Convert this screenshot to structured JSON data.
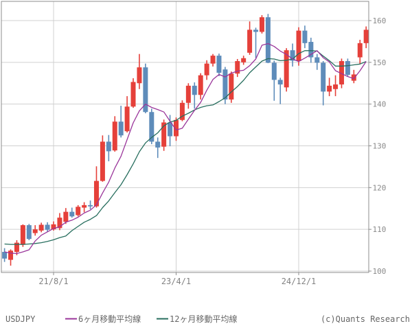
{
  "legend": {
    "series_label": "USDJPY",
    "ma6_label": "6ヶ月移動平均線",
    "ma12_label": "12ヶ月移動平均線",
    "copyright": "(c)Quants Research"
  },
  "colors": {
    "up_candle": "#e5403a",
    "down_candle": "#5e8cba",
    "ma6": "#9a359a",
    "ma12": "#276e5e",
    "grid": "#d0d0d0",
    "frame": "#8c8c8c",
    "axis_text": "#8a8a8a",
    "legend_text": "#666666",
    "background": "#ffffff"
  },
  "chart_data": {
    "type": "candlestick",
    "symbol": "USDJPY",
    "interval": "monthly",
    "ylim": [
      100,
      164.6
    ],
    "grid": true,
    "y_ticks": [
      100,
      110,
      120,
      130,
      140,
      150,
      160
    ],
    "x_ticks": [
      {
        "index": 8,
        "label": "21/8/1"
      },
      {
        "index": 28,
        "label": "23/4/1"
      },
      {
        "index": 48,
        "label": "24/12/1"
      }
    ],
    "candles_ohlc": [
      [
        104.6,
        105.5,
        102.2,
        103.0
      ],
      [
        102.7,
        105.2,
        101.3,
        104.9
      ],
      [
        104.6,
        107.4,
        103.8,
        106.8
      ],
      [
        106.3,
        111.2,
        105.8,
        111.0
      ],
      [
        111.0,
        111.3,
        107.4,
        107.7
      ],
      [
        109.1,
        111.0,
        108.5,
        110.0
      ],
      [
        109.7,
        111.6,
        109.3,
        111.1
      ],
      [
        111.1,
        111.7,
        109.4,
        109.9
      ],
      [
        110.0,
        111.9,
        109.7,
        111.2
      ],
      [
        110.3,
        113.9,
        109.8,
        112.8
      ],
      [
        111.8,
        115.1,
        111.3,
        114.2
      ],
      [
        114.2,
        115.2,
        112.8,
        113.1
      ],
      [
        113.4,
        115.8,
        113.1,
        115.4
      ],
      [
        115.2,
        116.5,
        114.1,
        115.8
      ],
      [
        115.8,
        116.9,
        114.8,
        115.5
      ],
      [
        115.5,
        125.1,
        115.2,
        121.6
      ],
      [
        121.6,
        132.5,
        121.4,
        131.0
      ],
      [
        131.0,
        132.6,
        126.3,
        128.7
      ],
      [
        128.9,
        137.1,
        128.6,
        135.8
      ],
      [
        135.8,
        139.6,
        132.0,
        132.5
      ],
      [
        133.5,
        141.9,
        133.2,
        139.4
      ],
      [
        139.4,
        146.2,
        139.1,
        145.3
      ],
      [
        145.0,
        152.0,
        143.6,
        148.8
      ],
      [
        148.8,
        149.7,
        137.8,
        138.1
      ],
      [
        138.1,
        138.9,
        130.4,
        131.0
      ],
      [
        131.0,
        132.0,
        127.1,
        129.6
      ],
      [
        129.8,
        136.3,
        128.8,
        135.6
      ],
      [
        135.6,
        137.4,
        129.9,
        132.3
      ],
      [
        132.3,
        136.8,
        131.2,
        136.2
      ],
      [
        136.2,
        140.9,
        135.9,
        140.3
      ],
      [
        140.3,
        145.0,
        138.9,
        144.4
      ],
      [
        144.4,
        145.2,
        138.9,
        142.2
      ],
      [
        142.2,
        147.4,
        141.1,
        146.9
      ],
      [
        146.9,
        150.5,
        145.8,
        149.7
      ],
      [
        149.7,
        152.0,
        149.0,
        151.6
      ],
      [
        151.6,
        152.1,
        146.7,
        147.5
      ],
      [
        148.3,
        148.9,
        140.0,
        141.1
      ],
      [
        141.1,
        147.8,
        140.3,
        147.3
      ],
      [
        147.3,
        150.8,
        146.5,
        150.3
      ],
      [
        150.0,
        151.6,
        149.4,
        151.0
      ],
      [
        152.3,
        159.8,
        151.8,
        157.8
      ],
      [
        157.8,
        158.3,
        151.0,
        157.3
      ],
      [
        157.3,
        161.3,
        156.9,
        160.8
      ],
      [
        160.8,
        161.6,
        149.8,
        149.9
      ],
      [
        149.9,
        150.4,
        140.8,
        145.8
      ],
      [
        145.8,
        146.3,
        140.0,
        144.7
      ],
      [
        144.0,
        153.4,
        143.0,
        152.9
      ],
      [
        152.9,
        154.5,
        149.0,
        150.4
      ],
      [
        150.3,
        158.4,
        149.2,
        157.6
      ],
      [
        157.6,
        158.8,
        153.4,
        154.6
      ],
      [
        154.9,
        155.9,
        149.9,
        151.2
      ],
      [
        151.2,
        152.0,
        148.2,
        149.9
      ],
      [
        149.9,
        150.3,
        139.7,
        143.0
      ],
      [
        143.0,
        146.3,
        141.9,
        144.4
      ],
      [
        143.6,
        146.9,
        141.9,
        144.7
      ],
      [
        144.7,
        150.9,
        143.8,
        150.3
      ],
      [
        150.3,
        150.9,
        146.6,
        147.0
      ],
      [
        145.6,
        148.2,
        145.0,
        147.1
      ],
      [
        151.2,
        155.4,
        149.6,
        154.6
      ],
      [
        154.6,
        158.6,
        153.4,
        157.8
      ]
    ],
    "series": [
      {
        "name": "6ヶ月移動平均線",
        "type": "line",
        "color_key": "ma6",
        "values": [
          104.6,
          104.3,
          104.2,
          104.6,
          105.1,
          107.2,
          108.6,
          109.4,
          110.2,
          110.6,
          111.7,
          112.2,
          112.9,
          113.9,
          114.6,
          115.9,
          118.7,
          121.3,
          124.7,
          127.5,
          131.5,
          135.5,
          138.4,
          140.0,
          139.2,
          138.7,
          138.1,
          135.9,
          133.8,
          134.2,
          136.4,
          138.5,
          140.4,
          143.3,
          145.9,
          147.1,
          146.5,
          147.4,
          147.9,
          148.1,
          149.2,
          150.8,
          154.1,
          154.5,
          153.8,
          152.7,
          151.9,
          150.8,
          150.2,
          151.0,
          151.9,
          152.8,
          151.1,
          150.1,
          148.0,
          147.3,
          146.6,
          146.1,
          148.0,
          150.2
        ]
      },
      {
        "name": "12ヶ月移動平均線",
        "type": "line",
        "color_key": "ma12",
        "values": [
          106.5,
          106.4,
          106.4,
          106.4,
          106.5,
          106.6,
          106.8,
          107.1,
          107.5,
          108.0,
          108.4,
          109.7,
          110.7,
          111.7,
          112.4,
          113.3,
          115.2,
          116.8,
          118.8,
          120.7,
          123.1,
          125.7,
          128.6,
          130.7,
          132.0,
          133.1,
          134.8,
          135.7,
          136.1,
          137.1,
          137.8,
          138.6,
          139.2,
          139.6,
          139.8,
          140.6,
          141.5,
          142.9,
          144.2,
          145.7,
          147.5,
          148.9,
          150.3,
          150.9,
          150.8,
          150.4,
          150.5,
          150.8,
          152.1,
          152.8,
          152.8,
          152.7,
          151.5,
          150.4,
          149.1,
          149.1,
          149.2,
          149.4,
          149.6,
          150.2
        ]
      }
    ]
  }
}
